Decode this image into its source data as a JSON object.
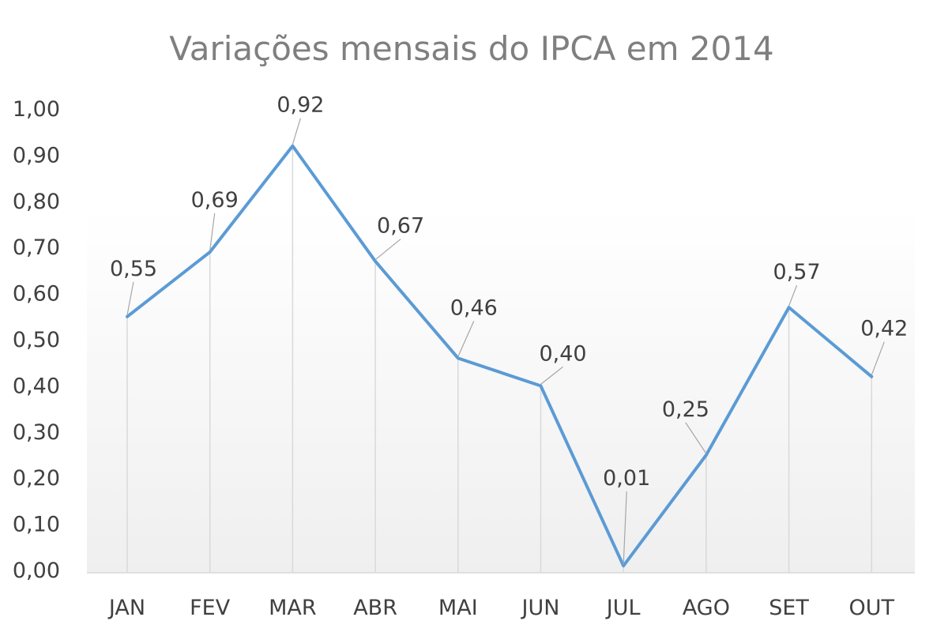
{
  "chart_data": {
    "type": "line",
    "title": "Variações mensais do IPCA em 2014",
    "xlabel": "",
    "ylabel": "",
    "categories": [
      "JAN",
      "FEV",
      "MAR",
      "ABR",
      "MAI",
      "JUN",
      "JUL",
      "AGO",
      "SET",
      "OUT"
    ],
    "values": [
      0.55,
      0.69,
      0.92,
      0.67,
      0.46,
      0.4,
      0.01,
      0.25,
      0.57,
      0.42
    ],
    "data_labels": [
      "0,55",
      "0,69",
      "0,92",
      "0,67",
      "0,46",
      "0,40",
      "0,01",
      "0,25",
      "0,57",
      "0,42"
    ],
    "ylim": [
      0,
      1.0
    ],
    "y_ticks": [
      "0,00",
      "0,10",
      "0,20",
      "0,30",
      "0,40",
      "0,50",
      "0,60",
      "0,70",
      "0,80",
      "0,90",
      "1,00"
    ],
    "grid": "vertical drop lines",
    "legend": "none",
    "colors": {
      "line": "#5b9bd5",
      "drop_line": "#d9d9d9",
      "axis_line": "#d9d9d9",
      "leader_line": "#a6a6a6",
      "title": "#7f7f7f",
      "text": "#404040"
    }
  }
}
